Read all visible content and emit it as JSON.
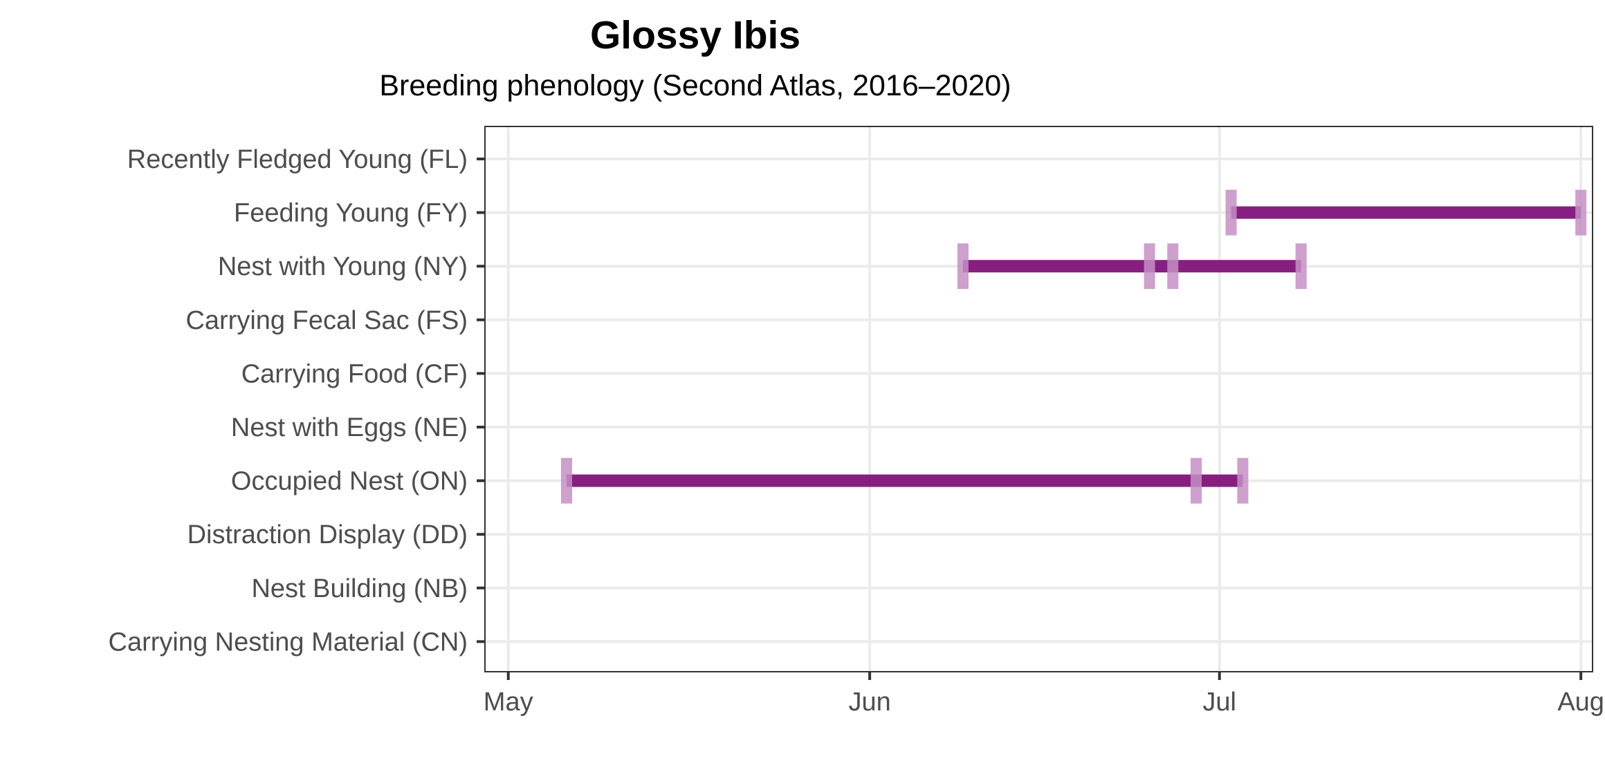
{
  "chart_data": {
    "type": "timeline",
    "title": "Glossy Ibis",
    "subtitle": "Breeding phenology (Second Atlas, 2016–2020)",
    "x_axis": {
      "type": "date",
      "range": [
        "2000-04-29",
        "2000-08-02"
      ],
      "ticks": [
        {
          "label": "May",
          "date": "2000-05-01"
        },
        {
          "label": "Jun",
          "date": "2000-06-01"
        },
        {
          "label": "Jul",
          "date": "2000-07-01"
        },
        {
          "label": "Aug",
          "date": "2000-08-01"
        }
      ]
    },
    "grid": true,
    "categories": [
      "Recently Fledged Young (FL)",
      "Feeding Young (FY)",
      "Nest with Young (NY)",
      "Carrying Fecal Sac (FS)",
      "Carrying Food (CF)",
      "Nest with Eggs (NE)",
      "Occupied Nest (ON)",
      "Distraction Display (DD)",
      "Nest Building (NB)",
      "Carrying Nesting Material (CN)"
    ],
    "ranges": [
      {
        "category": "Feeding Young (FY)",
        "start": "2000-07-02",
        "end": "2000-08-01"
      },
      {
        "category": "Nest with Young (NY)",
        "start": "2000-06-09",
        "end": "2000-07-08"
      },
      {
        "category": "Occupied Nest (ON)",
        "start": "2000-05-06",
        "end": "2000-07-03"
      }
    ],
    "observations": [
      {
        "category": "Feeding Young (FY)",
        "date": "2000-07-02"
      },
      {
        "category": "Feeding Young (FY)",
        "date": "2000-08-01"
      },
      {
        "category": "Nest with Young (NY)",
        "date": "2000-06-09"
      },
      {
        "category": "Nest with Young (NY)",
        "date": "2000-06-25"
      },
      {
        "category": "Nest with Young (NY)",
        "date": "2000-06-27"
      },
      {
        "category": "Nest with Young (NY)",
        "date": "2000-07-08"
      },
      {
        "category": "Occupied Nest (ON)",
        "date": "2000-05-06"
      },
      {
        "category": "Occupied Nest (ON)",
        "date": "2000-06-29"
      },
      {
        "category": "Occupied Nest (ON)",
        "date": "2000-07-03"
      }
    ],
    "colors": {
      "bar": "#861f80",
      "marker": "#c48fc4",
      "grid": "#ebebeb",
      "axis": "#333333"
    }
  }
}
